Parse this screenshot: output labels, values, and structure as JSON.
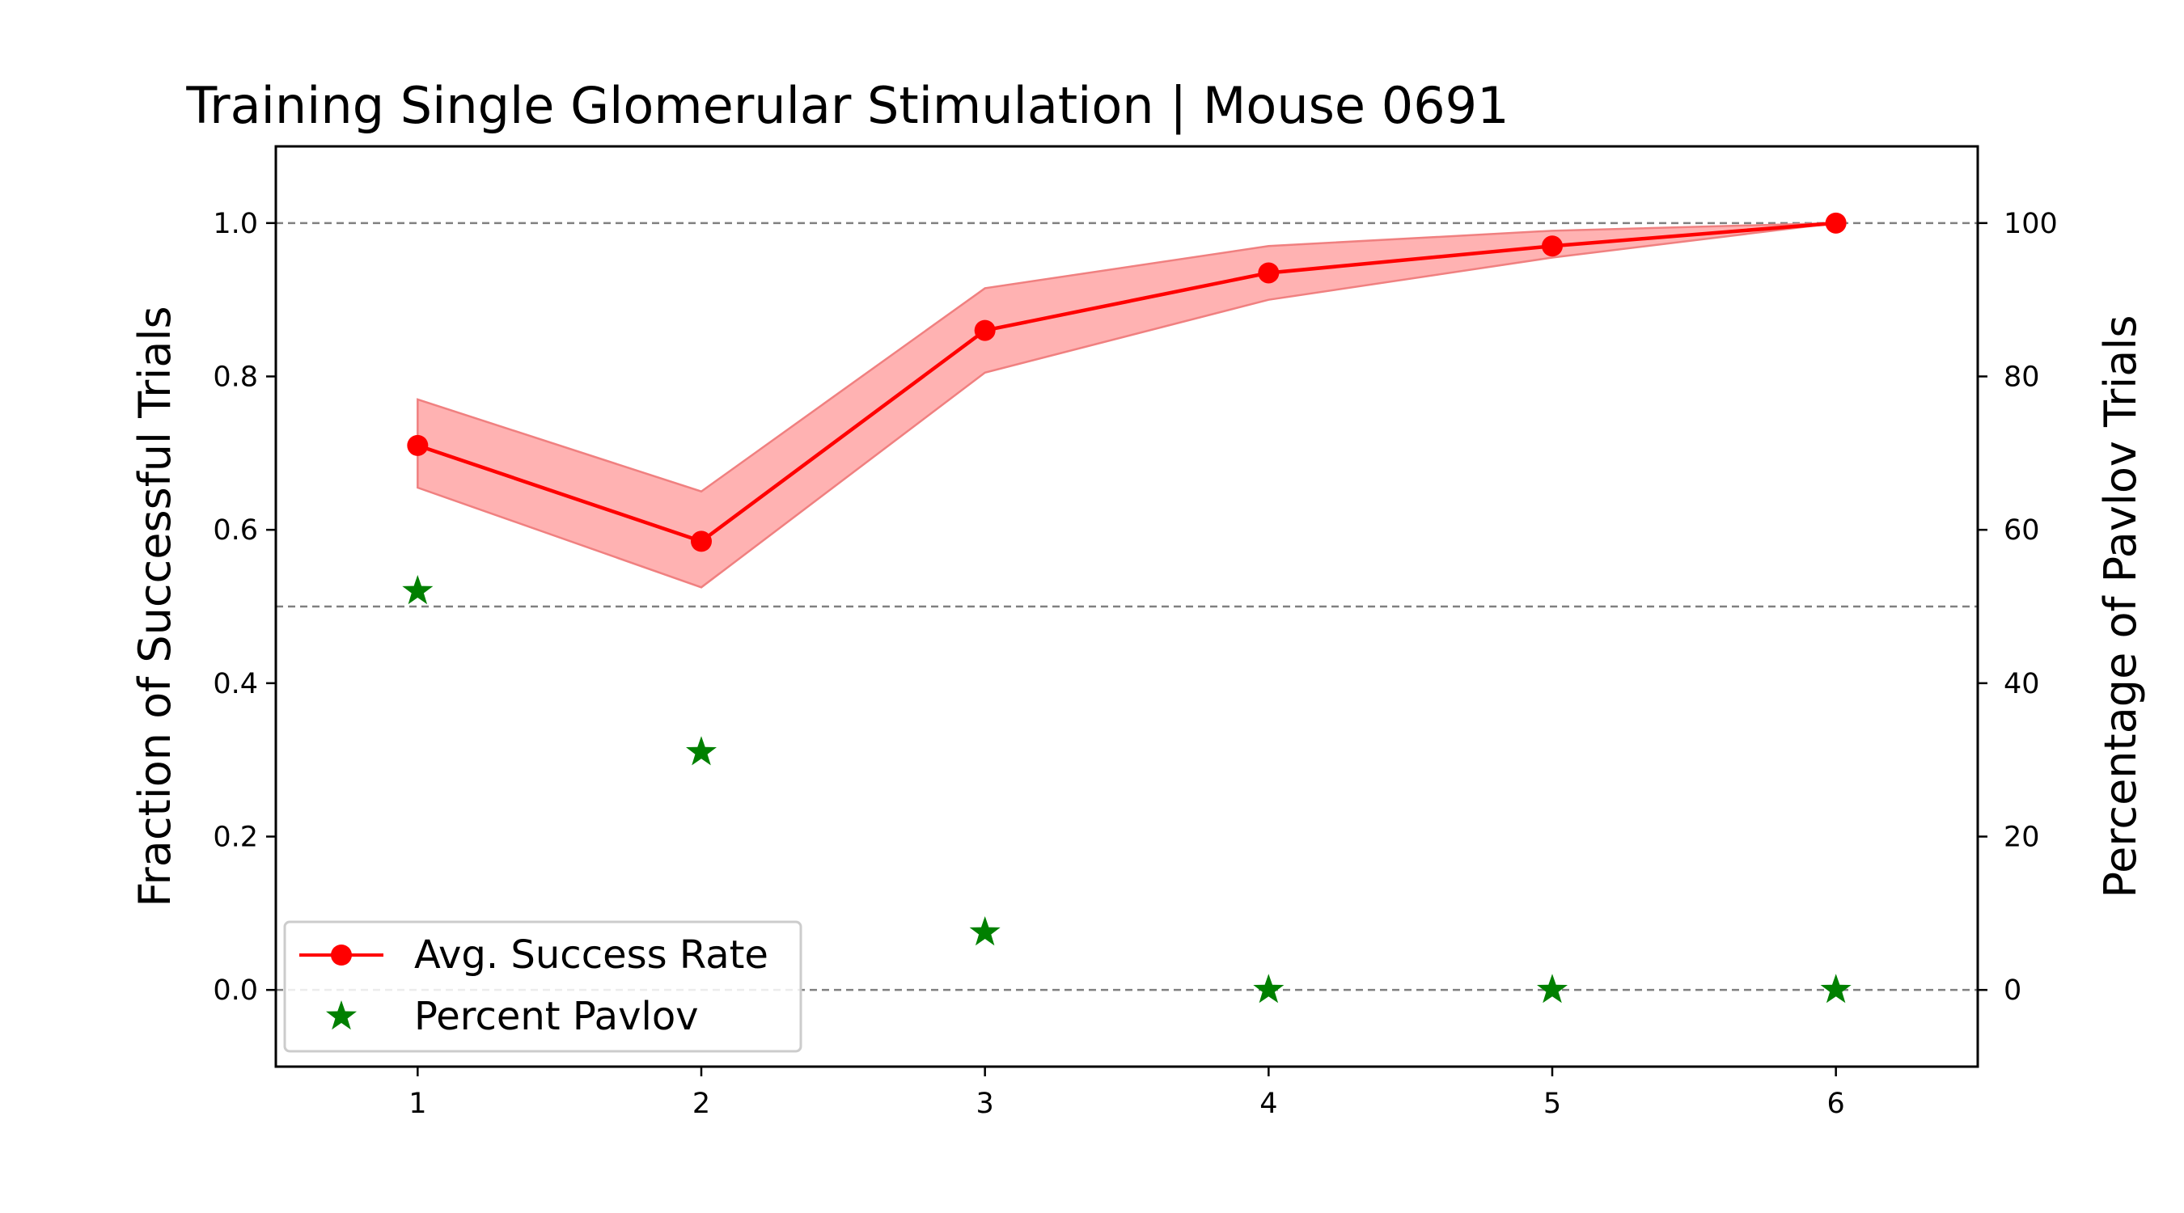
{
  "chart_data": {
    "type": "line",
    "title": "Training Single Glomerular Stimulation | Mouse 0691",
    "xlabel": "",
    "ylabel": "Fraction of Successful Trials",
    "y2label": "Percentage of Pavlov Trials",
    "x": [
      1,
      2,
      3,
      4,
      5,
      6
    ],
    "x_ticks": [
      "1",
      "2",
      "3",
      "4",
      "5",
      "6"
    ],
    "xlim": [
      0.5,
      6.5
    ],
    "ylim": [
      -0.1,
      1.1
    ],
    "y_ticks": [
      "0.0",
      "0.2",
      "0.4",
      "0.6",
      "0.8",
      "1.0"
    ],
    "y2lim": [
      -10,
      110
    ],
    "y2_ticks": [
      "0",
      "20",
      "40",
      "60",
      "80",
      "100"
    ],
    "reference_lines_y": [
      0.0,
      0.5,
      1.0
    ],
    "series": [
      {
        "name": "Avg. Success Rate",
        "axis": "left",
        "style": "line-marker",
        "color": "#ff0000",
        "values": [
          0.71,
          0.585,
          0.86,
          0.935,
          0.97,
          1.0
        ],
        "band_lower": [
          0.655,
          0.525,
          0.805,
          0.9,
          0.955,
          1.0
        ],
        "band_upper": [
          0.77,
          0.65,
          0.915,
          0.97,
          0.99,
          1.0
        ],
        "band_color": "#ff9c9c"
      },
      {
        "name": "Percent Pavlov",
        "axis": "right",
        "style": "star",
        "color": "#008000",
        "values": [
          52,
          31,
          7.5,
          0,
          0,
          0
        ]
      }
    ],
    "legend_position": "lower-left",
    "grid": false
  }
}
